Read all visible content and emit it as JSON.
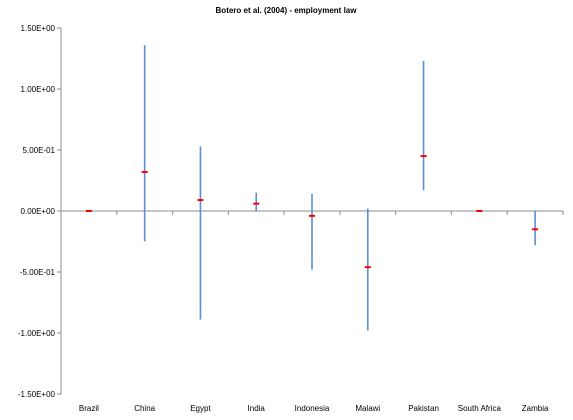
{
  "chart_data": {
    "type": "scatter",
    "title": "Botero et al. (2004) - employment law",
    "xlabel": "",
    "ylabel": "",
    "ylim": [
      -1.5,
      1.5
    ],
    "yticks": [
      1.5,
      1.0,
      0.5,
      0.0,
      -0.5,
      -1.0,
      -1.5
    ],
    "ytick_labels": [
      "1.50E+00",
      "1.00E+00",
      "5.00E-01",
      "0.00E+00",
      "-5.00E-01",
      "-1.00E+00",
      "-1.50E+00"
    ],
    "categories": [
      "Brazil",
      "China",
      "Egypt",
      "India",
      "Indonesia",
      "Malawi",
      "Pakistan",
      "South Africa",
      "Zambia"
    ],
    "point": [
      0.0,
      0.32,
      0.09,
      0.06,
      -0.04,
      -0.46,
      0.45,
      0.0,
      -0.15
    ],
    "upper": [
      0.0,
      1.36,
      0.53,
      0.15,
      0.14,
      0.02,
      1.23,
      0.0,
      0.0
    ],
    "lower": [
      0.0,
      -0.25,
      -0.89,
      0.0,
      -0.48,
      -0.98,
      0.17,
      0.0,
      -0.28
    ],
    "grid": false,
    "legend": "none",
    "colors": {
      "point": "#ff0000",
      "range": "#5b8fd0",
      "axis": "#8c8c8c"
    }
  }
}
